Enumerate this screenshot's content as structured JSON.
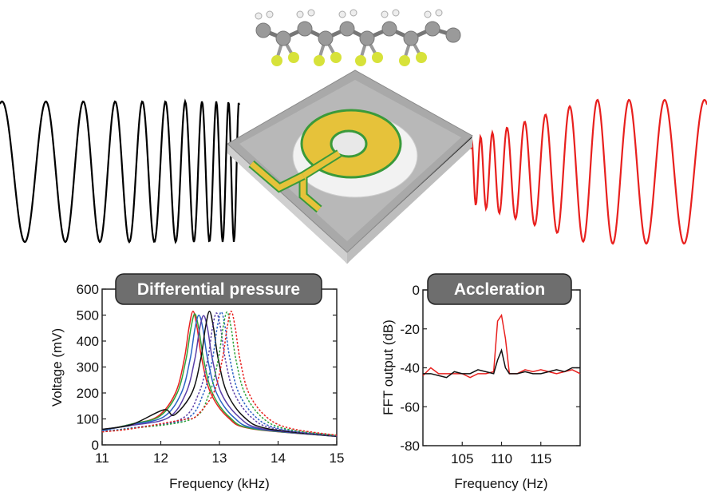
{
  "figure": {
    "left_panel_badge": "Differential pressure",
    "right_panel_badge": "Accleration",
    "colors": {
      "input_wave": "#000000",
      "output_wave": "#e8201e",
      "badge_fill": "#6e6e6e",
      "electrode": "#e6c23a",
      "fluorine": "#d7e23a",
      "carbon": "#9a9a9a"
    },
    "icons": [
      "sensor-chip-illustration",
      "molecule-illustration",
      "input-chirp-wave",
      "output-chirp-wave"
    ]
  },
  "chart_data": [
    {
      "type": "line",
      "title": "Differential pressure",
      "xlabel": "Frequency (kHz)",
      "ylabel": "Voltage (mV)",
      "xlim": [
        11,
        15
      ],
      "ylim": [
        0,
        600
      ],
      "xticks": [
        "11",
        "12",
        "13",
        "14",
        "15"
      ],
      "yticks": [
        "0",
        "100",
        "200",
        "300",
        "400",
        "500",
        "600"
      ],
      "grid": false,
      "series": [
        {
          "color": "#e8201e",
          "dash": false,
          "x": [
            11,
            11.5,
            11.95,
            12.25,
            12.4,
            12.48,
            12.55,
            12.62,
            12.7,
            12.85,
            13.15,
            13.55,
            15
          ],
          "y": [
            55,
            80,
            110,
            200,
            330,
            450,
            515,
            450,
            330,
            200,
            105,
            62,
            33
          ]
        },
        {
          "color": "#2ea33a",
          "dash": false,
          "x": [
            11,
            11.5,
            11.98,
            12.28,
            12.43,
            12.51,
            12.58,
            12.65,
            12.73,
            12.88,
            13.18,
            13.58,
            15
          ],
          "y": [
            55,
            80,
            110,
            200,
            330,
            445,
            505,
            445,
            330,
            200,
            105,
            62,
            33
          ]
        },
        {
          "color": "#2a62c4",
          "dash": false,
          "x": [
            11,
            11.5,
            12.05,
            12.35,
            12.5,
            12.58,
            12.65,
            12.72,
            12.8,
            12.95,
            13.25,
            13.65,
            15
          ],
          "y": [
            55,
            78,
            108,
            200,
            330,
            445,
            500,
            445,
            330,
            200,
            105,
            62,
            33
          ]
        },
        {
          "color": "#5a3fa8",
          "dash": false,
          "x": [
            11,
            11.5,
            12.13,
            12.43,
            12.58,
            12.66,
            12.73,
            12.8,
            12.88,
            13.03,
            13.33,
            13.73,
            15
          ],
          "y": [
            60,
            75,
            105,
            200,
            330,
            445,
            498,
            445,
            330,
            200,
            108,
            62,
            33
          ]
        },
        {
          "color": "#111111",
          "dash": false,
          "x": [
            11,
            11.5,
            12.05,
            12.23,
            12.53,
            12.68,
            12.76,
            12.83,
            12.9,
            12.98,
            13.13,
            13.43,
            13.83,
            15
          ],
          "y": [
            60,
            78,
            135,
            115,
            200,
            330,
            450,
            515,
            450,
            330,
            200,
            105,
            62,
            33
          ]
        },
        {
          "color": "#5a3fa8",
          "dash": true,
          "x": [
            11,
            11.5,
            12.35,
            12.65,
            12.8,
            12.88,
            12.95,
            13.02,
            13.1,
            13.25,
            13.55,
            13.95,
            15
          ],
          "y": [
            52,
            65,
            100,
            200,
            330,
            450,
            508,
            450,
            330,
            200,
            105,
            62,
            34
          ]
        },
        {
          "color": "#2a62c4",
          "dash": true,
          "x": [
            11,
            11.5,
            12.43,
            12.73,
            12.88,
            12.96,
            13.03,
            13.1,
            13.18,
            13.33,
            13.63,
            14.03,
            15
          ],
          "y": [
            52,
            65,
            100,
            200,
            330,
            450,
            512,
            450,
            330,
            200,
            105,
            62,
            35
          ]
        },
        {
          "color": "#2ea33a",
          "dash": true,
          "x": [
            11,
            11.5,
            12.53,
            12.83,
            12.98,
            13.06,
            13.13,
            13.2,
            13.28,
            13.43,
            13.73,
            14.13,
            15
          ],
          "y": [
            50,
            63,
            100,
            200,
            330,
            450,
            512,
            450,
            330,
            200,
            105,
            62,
            36
          ]
        },
        {
          "color": "#e8201e",
          "dash": true,
          "x": [
            11,
            11.5,
            12.4,
            12.6,
            12.9,
            13.05,
            13.13,
            13.2,
            13.27,
            13.35,
            13.5,
            13.8,
            14.2,
            15
          ],
          "y": [
            50,
            62,
            98,
            110,
            200,
            330,
            450,
            515,
            450,
            330,
            200,
            108,
            64,
            37
          ]
        }
      ]
    },
    {
      "type": "line",
      "title": "Accleration",
      "xlabel": "Frequency (Hz)",
      "ylabel": "FFT output (dB)",
      "xlim": [
        100,
        120
      ],
      "ylim": [
        -80,
        0
      ],
      "xticks": [
        "105",
        "110",
        "115"
      ],
      "yticks": [
        "0",
        "-20",
        "-40",
        "-60",
        "-80"
      ],
      "grid": false,
      "x": [
        100,
        101,
        102,
        103,
        104,
        105,
        106,
        107,
        108,
        109,
        109.5,
        110,
        110.5,
        111,
        112,
        113,
        114,
        115,
        116,
        117,
        118,
        119,
        120
      ],
      "series": [
        {
          "color": "#e8201e",
          "values": [
            -44,
            -40,
            -43,
            -43,
            -43,
            -43,
            -45,
            -43,
            -43,
            -42,
            -16,
            -13,
            -25,
            -43,
            -43,
            -41,
            -42,
            -41,
            -42,
            -43,
            -42,
            -41,
            -43
          ]
        },
        {
          "color": "#111111",
          "values": [
            -43,
            -43,
            -44,
            -45,
            -42,
            -43,
            -43,
            -41,
            -42,
            -43,
            -36,
            -31,
            -40,
            -43,
            -43,
            -42,
            -43,
            -43,
            -42,
            -41,
            -42,
            -40,
            -40
          ]
        }
      ]
    }
  ]
}
